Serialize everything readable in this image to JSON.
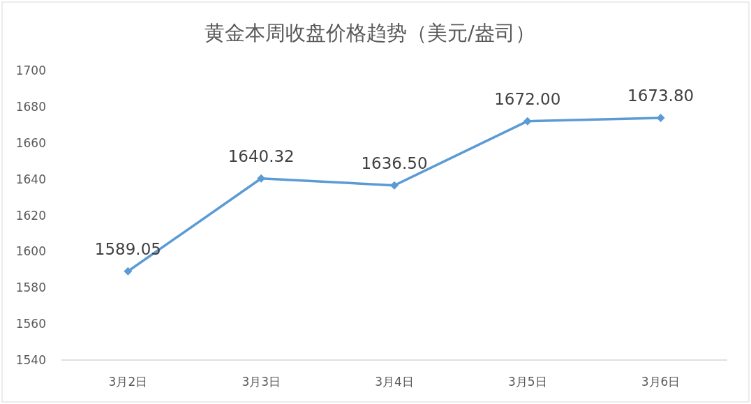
{
  "chart_data": {
    "type": "line",
    "title": "黄金本周收盘价格趋势（美元/盎司）",
    "categories": [
      "3月2日",
      "3月3日",
      "3月4日",
      "3月5日",
      "3月6日"
    ],
    "series": [
      {
        "color": "#5b9bd5",
        "values": [
          1589.05,
          1640.32,
          1636.5,
          1672.0,
          1673.8
        ],
        "value_labels": [
          "1589.05",
          "1640.32",
          "1636.50",
          "1672.00",
          "1673.80"
        ]
      }
    ],
    "ylim": [
      1540,
      1700
    ],
    "yticks": [
      1540,
      1560,
      1580,
      1600,
      1620,
      1640,
      1660,
      1680,
      1700
    ],
    "marker": "diamond",
    "line_style": "solid",
    "grid": false
  }
}
